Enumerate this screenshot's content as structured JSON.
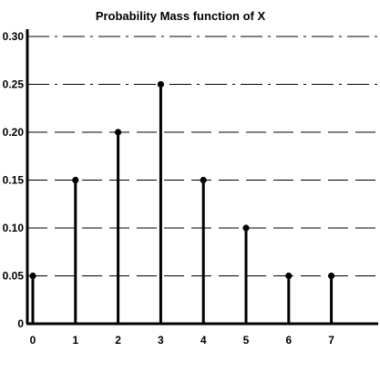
{
  "chart_data": {
    "type": "stem",
    "title": "Probability Mass function of X",
    "xlabel": "",
    "ylabel": "",
    "x": [
      0,
      1,
      2,
      3,
      4,
      5,
      6,
      7
    ],
    "y": [
      0.05,
      0.15,
      0.2,
      0.25,
      0.15,
      0.1,
      0.05,
      0.05
    ],
    "xticks": [
      "0",
      "1",
      "2",
      "3",
      "4",
      "5",
      "6",
      "7"
    ],
    "yticks": [
      {
        "value": 0,
        "label": "0"
      },
      {
        "value": 0.05,
        "label": "0.05"
      },
      {
        "value": 0.1,
        "label": "0.10"
      },
      {
        "value": 0.15,
        "label": "0.15"
      },
      {
        "value": 0.2,
        "label": "0.20"
      },
      {
        "value": 0.25,
        "label": "0.25"
      },
      {
        "value": 0.3,
        "label": "0.30"
      }
    ],
    "ylim": [
      0,
      0.3
    ],
    "grid": "horizontal-dashed"
  }
}
